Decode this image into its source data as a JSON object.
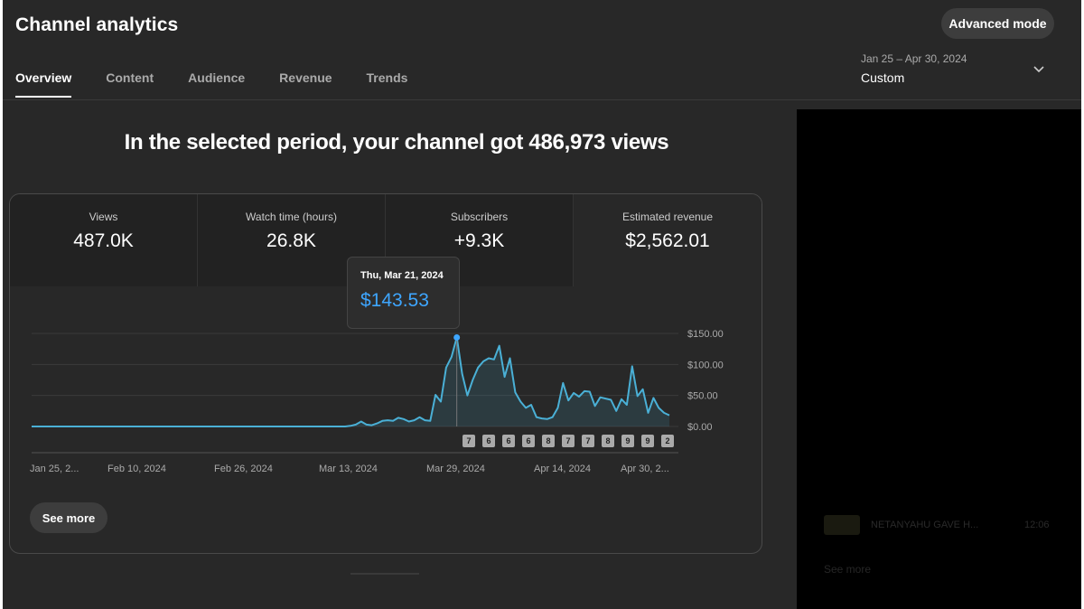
{
  "app": {
    "title": "Channel analytics",
    "advanced_mode": "Advanced mode"
  },
  "tabs": [
    {
      "label": "Overview",
      "active": true
    },
    {
      "label": "Content",
      "active": false
    },
    {
      "label": "Audience",
      "active": false
    },
    {
      "label": "Revenue",
      "active": false
    },
    {
      "label": "Trends",
      "active": false
    }
  ],
  "date_range": {
    "dates": "Jan 25 – Apr 30, 2024",
    "label": "Custom"
  },
  "headline": "In the selected period, your channel got 486,973 views",
  "metrics": [
    {
      "label": "Views",
      "value": "487.0K"
    },
    {
      "label": "Watch time (hours)",
      "value": "26.8K"
    },
    {
      "label": "Subscribers",
      "value": "+9.3K"
    },
    {
      "label": "Estimated revenue",
      "value": "$2,562.01"
    }
  ],
  "tooltip": {
    "date": "Thu, Mar 21, 2024",
    "value": "$143.53"
  },
  "see_more": "See more",
  "ghost": {
    "title": "NETANYAHU GAVE H...",
    "value": "12:06",
    "see_more": "See more"
  },
  "colors": {
    "accent": "#3ea6ff",
    "line": "#4ab0d6"
  },
  "chart_data": {
    "type": "line",
    "title": "",
    "ylabel": "",
    "ylim": [
      0,
      150
    ],
    "y_ticks": [
      "$150.00",
      "$100.00",
      "$50.00",
      "$0.00"
    ],
    "x_tick_labels": [
      "Jan 25, 2...",
      "Feb 10, 2024",
      "Feb 26, 2024",
      "Mar 13, 2024",
      "Mar 29, 2024",
      "Apr 14, 2024",
      "Apr 30, 2..."
    ],
    "series": [
      {
        "values": [
          0,
          0,
          0,
          0,
          0,
          0,
          0,
          0,
          0,
          0,
          0,
          0,
          0,
          0,
          0,
          0,
          0,
          0,
          0,
          0,
          0,
          0,
          0,
          0,
          0,
          0,
          0,
          0,
          0,
          0,
          0,
          0,
          0,
          0,
          0,
          0,
          0,
          0,
          0,
          0,
          0,
          0,
          0,
          0,
          0,
          0,
          0,
          0,
          0,
          0,
          0,
          0,
          0,
          0,
          0,
          0,
          0,
          0,
          0,
          0,
          1,
          3,
          8,
          3,
          2,
          5,
          9,
          10,
          9,
          14,
          12,
          8,
          10,
          15,
          10,
          9,
          51,
          40,
          95,
          112,
          143.53,
          85,
          50,
          75,
          95,
          105,
          110,
          108,
          130,
          80,
          110,
          55,
          40,
          30,
          35,
          15,
          13,
          12,
          15,
          30,
          70,
          42,
          54,
          48,
          57,
          56,
          33,
          47,
          45,
          43,
          25,
          44,
          35,
          97,
          49,
          60,
          22,
          46,
          30,
          22,
          18
        ]
      }
    ],
    "markers": [
      "7",
      "6",
      "6",
      "6",
      "8",
      "7",
      "7",
      "8",
      "9",
      "9",
      "2"
    ]
  }
}
